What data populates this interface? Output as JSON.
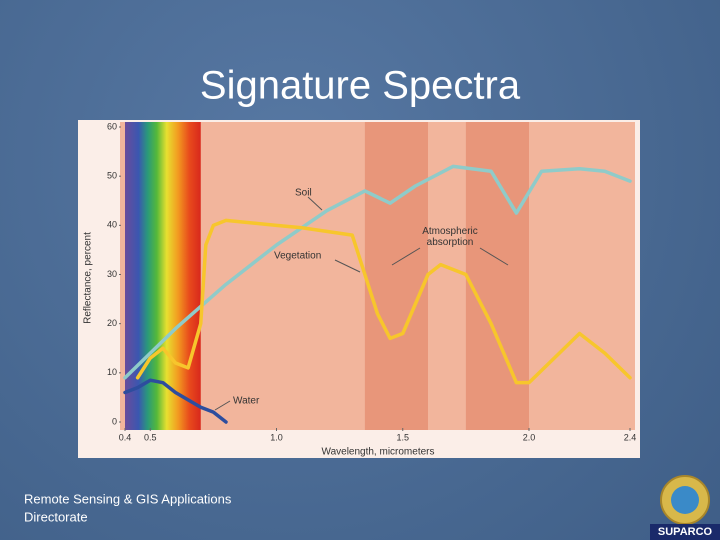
{
  "slide_title": "Signature Spectra",
  "footer": [
    "Remote Sensing & GIS Applications",
    "Directorate"
  ],
  "logo": {
    "text": "SUPARCO"
  },
  "chart_data": {
    "type": "line",
    "xlabel": "Wavelength, micrometers",
    "ylabel": "Reflectance, percent",
    "xlim": [
      0.4,
      2.4
    ],
    "xticks": [
      0.4,
      0.5,
      {
        "value": 1,
        "label": "1.0"
      },
      1.5,
      {
        "value": 2,
        "label": "2.0"
      },
      2.4
    ],
    "ylim": [
      0,
      60
    ],
    "yticks": [
      0,
      10,
      20,
      30,
      40,
      50,
      60
    ],
    "visible_range": [
      0.4,
      0.7
    ],
    "absorption_bands": [
      [
        1.35,
        1.6
      ],
      [
        1.75,
        2.0
      ]
    ],
    "annotation": "Atmospheric absorption",
    "series": [
      {
        "name": "Soil",
        "color": "#8fcbc9",
        "x": [
          0.4,
          0.6,
          0.8,
          1.0,
          1.2,
          1.35,
          1.45,
          1.55,
          1.7,
          1.85,
          1.95,
          2.05,
          2.2,
          2.3,
          2.4
        ],
        "values": [
          9,
          19,
          28,
          36,
          43,
          47,
          44.5,
          48,
          52,
          51,
          42.5,
          51,
          51.5,
          51,
          49
        ]
      },
      {
        "name": "Vegetation",
        "color": "#f7c62c",
        "x": [
          0.45,
          0.5,
          0.55,
          0.6,
          0.65,
          0.7,
          0.72,
          0.75,
          0.8,
          1.0,
          1.1,
          1.3,
          1.35,
          1.4,
          1.45,
          1.5,
          1.55,
          1.6,
          1.65,
          1.75,
          1.85,
          1.95,
          2.0,
          2.1,
          2.2,
          2.3,
          2.4
        ],
        "values": [
          9,
          13,
          15,
          12,
          11,
          20,
          36,
          40,
          41,
          40,
          39.5,
          38,
          30,
          22,
          17,
          18,
          24,
          30,
          32,
          30,
          20,
          8,
          8,
          13,
          18,
          14,
          9
        ]
      },
      {
        "name": "Water",
        "color": "#2d4d9e",
        "x": [
          0.4,
          0.45,
          0.5,
          0.55,
          0.6,
          0.7,
          0.75,
          0.8
        ],
        "values": [
          6,
          7,
          8.5,
          8,
          6,
          3,
          2,
          0
        ]
      }
    ]
  }
}
